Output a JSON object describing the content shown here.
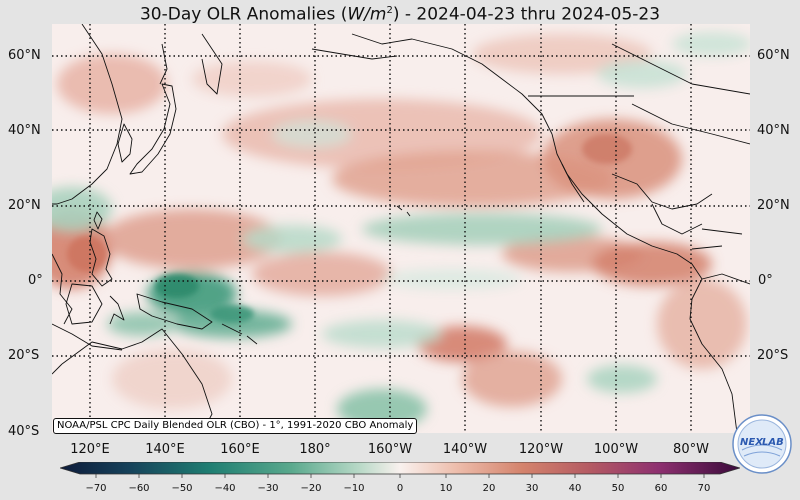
{
  "title": {
    "prefix": "30-Day OLR Anomalies (",
    "unit": "W/m",
    "unit_exp": "2",
    "suffix": ") - 2024-04-23 thru 2024-05-23"
  },
  "credit": "NOAA/PSL CPC Daily Blended OLR (CBO) - 1°, 1991-2020 CBO Anomaly",
  "lat_labels": [
    "60°N",
    "40°N",
    "20°N",
    "0°",
    "20°S",
    "40°S"
  ],
  "lon_labels": [
    "120°E",
    "140°E",
    "160°E",
    "180°",
    "160°W",
    "140°W",
    "120°W",
    "100°W",
    "80°W"
  ],
  "colorbar": {
    "ticks": [
      "−70",
      "−60",
      "−50",
      "−40",
      "−30",
      "−20",
      "−10",
      "0",
      "10",
      "20",
      "30",
      "40",
      "50",
      "60",
      "70"
    ],
    "min": -75,
    "max": 75
  },
  "logo": {
    "text_left": "NEX",
    "text_right": "LAB"
  },
  "colors": {
    "positive": "#c96b57",
    "negative": "#3f9a7c",
    "neutral": "#f7ecea",
    "coast": "#111111"
  }
}
